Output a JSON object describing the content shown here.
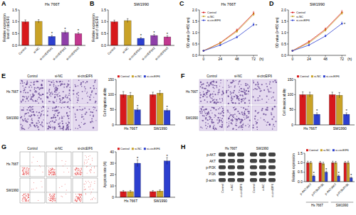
{
  "chart_data": [
    {
      "type": "bar",
      "label": "A",
      "title": "Hs 766T",
      "ylabel": [
        "Relative expression",
        "level of circEIF6"
      ],
      "categories": [
        "Control",
        "si-NC",
        "si-circEIF6#1",
        "si-circEIF6#2",
        "si-circEIF6#3"
      ],
      "values": [
        1.0,
        1.02,
        0.38,
        0.55,
        0.5
      ],
      "errors": [
        0.08,
        0.07,
        0.05,
        0.06,
        0.05
      ],
      "significance": [
        null,
        null,
        "*",
        "*",
        "*"
      ],
      "colors": [
        "#d7191c",
        "#c9a227",
        "#2c3fcf",
        "#8e3fa8",
        "#c2388f"
      ],
      "ylim": [
        0,
        1.5
      ],
      "yticks": [
        {
          "value": 0,
          "label": "0.0"
        },
        0.5,
        {
          "value": 1,
          "label": "1.0"
        },
        1.5
      ]
    },
    {
      "type": "bar",
      "label": "B",
      "title": "SW1990",
      "ylabel": [
        "Relative expression",
        "level of circEIF6"
      ],
      "categories": [
        "Control",
        "si-NC",
        "si-circEIF6#1",
        "si-circEIF6#2",
        "si-circEIF6#3"
      ],
      "values": [
        1.0,
        1.05,
        0.3,
        0.42,
        0.36
      ],
      "errors": [
        0.07,
        0.08,
        0.04,
        0.05,
        0.05
      ],
      "significance": [
        null,
        null,
        "*",
        "*",
        "*"
      ],
      "colors": [
        "#d7191c",
        "#c9a227",
        "#2c3fcf",
        "#8e3fa8",
        "#c2388f"
      ],
      "ylim": [
        0,
        1.5
      ],
      "yticks": [
        {
          "value": 0,
          "label": "0.0"
        },
        0.5,
        {
          "value": 1,
          "label": "1.0"
        },
        1.5
      ]
    },
    {
      "type": "line",
      "label": "C",
      "title": "Hs 766T",
      "ylabel": [
        "OD value (λ=450 nm)"
      ],
      "xlabel": "(h)",
      "x": [
        0,
        24,
        48,
        72
      ],
      "xlim": [
        -6,
        78
      ],
      "xticks": [
        0,
        24,
        48,
        72
      ],
      "ylim": [
        0,
        2
      ],
      "yticks": [
        {
          "value": 0,
          "label": "0.0"
        },
        0.5,
        {
          "value": 1,
          "label": "1.0"
        },
        1.5,
        {
          "value": 2,
          "label": "2.0"
        }
      ],
      "legend": "upper left",
      "marker": "circle",
      "series": [
        {
          "name": "Control",
          "color": "#d7191c",
          "values": [
            0.2,
            0.55,
            1.1,
            1.85
          ],
          "errors": [
            0.02,
            0.04,
            0.06,
            0.08
          ],
          "significance": [
            null,
            null,
            null,
            null
          ]
        },
        {
          "name": "si-NC",
          "color": "#c9a227",
          "values": [
            0.2,
            0.53,
            1.05,
            1.8
          ],
          "errors": [
            0.02,
            0.04,
            0.05,
            0.07
          ],
          "significance": [
            null,
            null,
            null,
            null
          ]
        },
        {
          "name": "si-circEIF6",
          "color": "#2c3fcf",
          "values": [
            0.2,
            0.45,
            0.8,
            1.35
          ],
          "errors": [
            0.02,
            0.04,
            0.05,
            0.07
          ],
          "significance": [
            null,
            null,
            null,
            "*"
          ]
        }
      ]
    },
    {
      "type": "line",
      "label": "D",
      "title": "SW1990",
      "ylabel": [
        "OD value (λ=450 nm)"
      ],
      "xlabel": "(h)",
      "x": [
        0,
        24,
        48,
        72
      ],
      "xlim": [
        -6,
        78
      ],
      "xticks": [
        0,
        24,
        48,
        72
      ],
      "ylim": [
        0,
        2
      ],
      "yticks": [
        {
          "value": 0,
          "label": "0.0"
        },
        0.5,
        {
          "value": 1,
          "label": "1.0"
        },
        1.5,
        {
          "value": 2,
          "label": "2.0"
        }
      ],
      "legend": "upper left",
      "marker": "circle",
      "series": [
        {
          "name": "Control",
          "color": "#d7191c",
          "values": [
            0.2,
            0.6,
            1.15,
            1.9
          ],
          "errors": [
            0.02,
            0.04,
            0.06,
            0.08
          ],
          "significance": [
            null,
            null,
            null,
            null
          ]
        },
        {
          "name": "si-NC",
          "color": "#c9a227",
          "values": [
            0.2,
            0.55,
            1.1,
            1.85
          ],
          "errors": [
            0.02,
            0.04,
            0.05,
            0.07
          ],
          "significance": [
            null,
            null,
            null,
            null
          ]
        },
        {
          "name": "si-circEIF6",
          "color": "#2c3fcf",
          "values": [
            0.2,
            0.45,
            0.85,
            1.4
          ],
          "errors": [
            0.02,
            0.04,
            0.05,
            0.07
          ],
          "significance": [
            null,
            null,
            null,
            "*"
          ]
        }
      ]
    },
    {
      "type": "bar",
      "label": "E",
      "image_rows": [
        "Hs 766T",
        "SW1990"
      ],
      "image_columns": [
        "Control",
        "si-NC",
        "si-circEIF6"
      ],
      "ylabel": [
        "Cell migration ability"
      ],
      "categories": [
        "Hs 766T",
        "SW1990"
      ],
      "legend": "top",
      "ylim": [
        0,
        150
      ],
      "yticks": [
        0,
        50,
        100,
        150
      ],
      "series": [
        {
          "name": "Control",
          "color": "#d7191c",
          "values": [
            100,
            100
          ],
          "errors": [
            10,
            8
          ],
          "significance": [
            null,
            null
          ]
        },
        {
          "name": "si-NC",
          "color": "#c9a227",
          "values": [
            98,
            105
          ],
          "errors": [
            9,
            8
          ],
          "significance": [
            null,
            null
          ]
        },
        {
          "name": "si-circEIF6",
          "color": "#2c3fcf",
          "values": [
            50,
            48
          ],
          "errors": [
            6,
            5
          ],
          "significance": [
            "*",
            "*"
          ]
        }
      ]
    },
    {
      "type": "bar",
      "label": "F",
      "image_rows": [
        "Hs 766T",
        "SW1990"
      ],
      "image_columns": [
        "Control",
        "si-NC",
        "si-circEIF6"
      ],
      "ylabel": [
        "Cell invasion ability"
      ],
      "categories": [
        "Hs 766T",
        "SW1990"
      ],
      "legend": "top",
      "ylim": [
        0,
        150
      ],
      "yticks": [
        0,
        50,
        100,
        150
      ],
      "series": [
        {
          "name": "Control",
          "color": "#d7191c",
          "values": [
            100,
            100
          ],
          "errors": [
            9,
            8
          ],
          "significance": [
            null,
            null
          ]
        },
        {
          "name": "si-NC",
          "color": "#c9a227",
          "values": [
            100,
            98
          ],
          "errors": [
            8,
            9
          ],
          "significance": [
            null,
            null
          ]
        },
        {
          "name": "si-circEIF6",
          "color": "#2c3fcf",
          "values": [
            35,
            35
          ],
          "errors": [
            5,
            5
          ],
          "significance": [
            "*",
            "*"
          ]
        }
      ]
    },
    {
      "type": "bar",
      "label": "G",
      "image_rows": [
        "Hs 766T",
        "SW1990"
      ],
      "image_columns": [
        "Control",
        "si-NC",
        "si-circEIF6"
      ],
      "ylabel": [
        "Apoptosis rate (%)"
      ],
      "categories": [
        "Hs 766T",
        "SW1990"
      ],
      "legend": "top",
      "ylim": [
        0,
        40
      ],
      "yticks": [
        0,
        10,
        20,
        30,
        40
      ],
      "series": [
        {
          "name": "Control",
          "color": "#d7191c",
          "values": [
            5,
            5
          ],
          "errors": [
            1,
            1
          ],
          "significance": [
            null,
            null
          ]
        },
        {
          "name": "si-NC",
          "color": "#c9a227",
          "values": [
            5,
            5.5
          ],
          "errors": [
            1,
            1
          ],
          "significance": [
            null,
            null
          ]
        },
        {
          "name": "si-circEIF6",
          "color": "#2c3fcf",
          "values": [
            30,
            32
          ],
          "errors": [
            3,
            3
          ],
          "significance": [
            "*",
            "*"
          ]
        }
      ]
    },
    {
      "type": "bar",
      "label": "H",
      "blot_groups": [
        "Hs 766T",
        "SW1990"
      ],
      "blot_rows": [
        "p-AKT",
        "AKT",
        "p-PI3K",
        "PI3K",
        "β-actin"
      ],
      "blot_columns": [
        "Control",
        "si-NC",
        "si-circEIF6"
      ],
      "ylabel": [
        "Relative expression"
      ],
      "categories": [
        "p-AKT/AKT",
        "p-PI3K/PI3K",
        "p-AKT/AKT",
        "p-PI3K/PI3K"
      ],
      "category_groups": [
        "Hs 766T",
        "Hs 766T",
        "SW1990",
        "SW1990"
      ],
      "legend": "top",
      "ylim": [
        0,
        1.5
      ],
      "yticks": [
        {
          "value": 0,
          "label": "0.0"
        },
        0.5,
        {
          "value": 1,
          "label": "1.0"
        },
        1.5
      ],
      "series": [
        {
          "name": "Control",
          "color": "#d7191c",
          "values": [
            1.0,
            1.0,
            1.0,
            1.0
          ],
          "errors": [
            0.08,
            0.07,
            0.08,
            0.07
          ],
          "significance": [
            null,
            null,
            null,
            null
          ]
        },
        {
          "name": "si-NC",
          "color": "#c9a227",
          "values": [
            1.0,
            0.95,
            1.0,
            1.0
          ],
          "errors": [
            0.07,
            0.08,
            0.07,
            0.08
          ],
          "significance": [
            null,
            null,
            null,
            null
          ]
        },
        {
          "name": "si-circEIF6",
          "color": "#2c3fcf",
          "values": [
            0.3,
            0.5,
            0.3,
            0.2
          ],
          "errors": [
            0.05,
            0.06,
            0.05,
            0.04
          ],
          "significance": [
            "*",
            "*",
            "*",
            "*"
          ]
        }
      ]
    }
  ]
}
